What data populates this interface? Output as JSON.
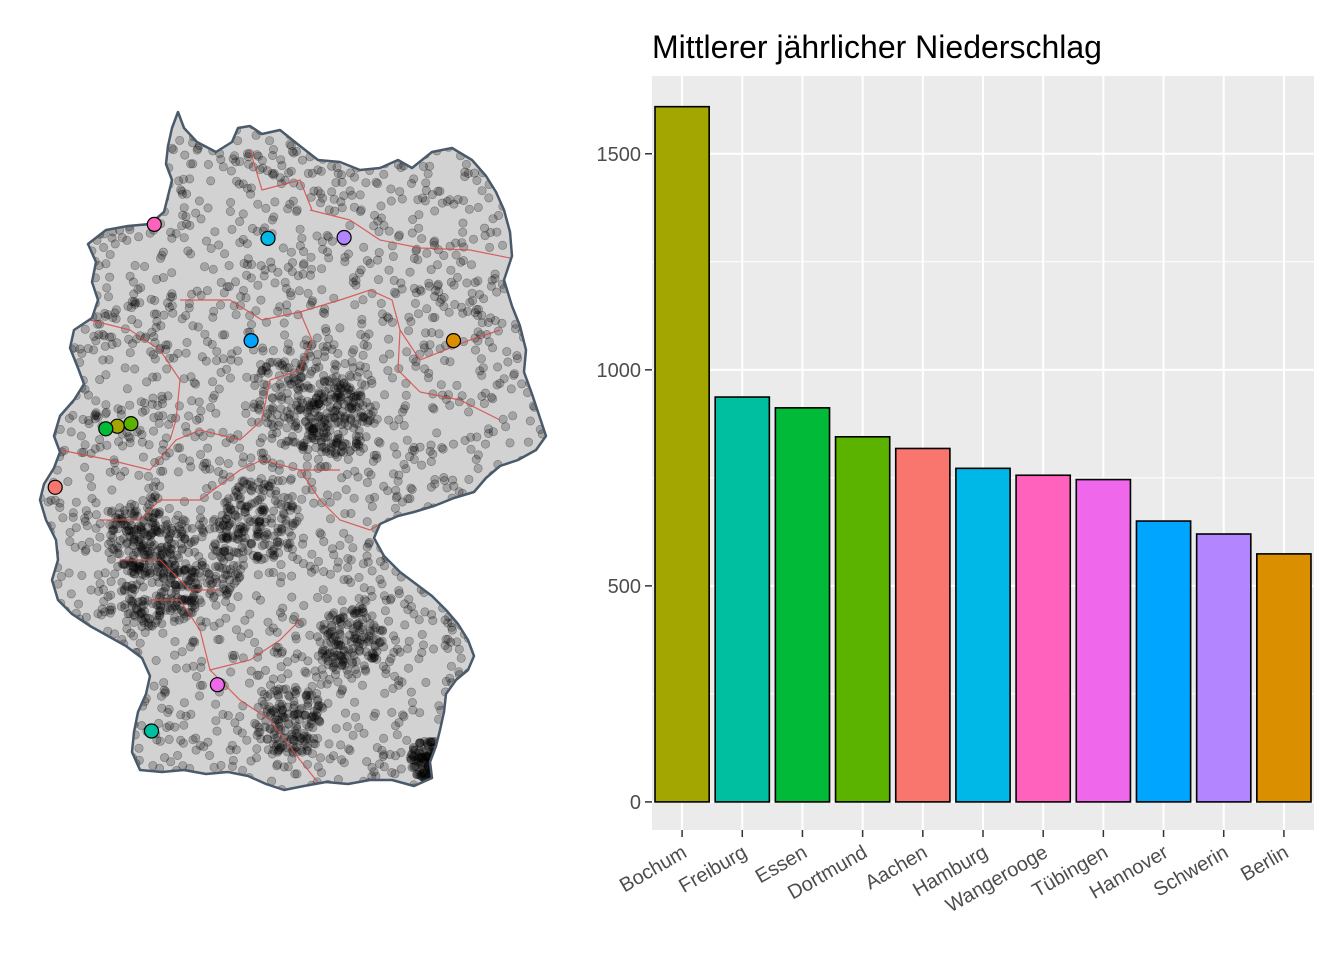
{
  "chart_data": {
    "type": "bar",
    "title": "Mittlerer jährlicher Niederschlag",
    "xlabel": "",
    "ylabel": "",
    "ylim": [
      -65,
      1680
    ],
    "yticks": [
      0,
      500,
      1000,
      1500
    ],
    "grid": true,
    "legend": "none",
    "categories": [
      "Bochum",
      "Freiburg",
      "Essen",
      "Dortmund",
      "Aachen",
      "Hamburg",
      "Wangerooge",
      "Tübingen",
      "Hannover",
      "Schwerin",
      "Berlin"
    ],
    "values": [
      1609,
      937,
      912,
      845,
      818,
      772,
      756,
      746,
      650,
      620,
      574
    ],
    "colors": [
      "#A3A500",
      "#00BFA0",
      "#00BA38",
      "#5BB300",
      "#F8766D",
      "#00B8E7",
      "#FF62BC",
      "#EF67EB",
      "#00A5FF",
      "#B385FF",
      "#D98F00"
    ]
  },
  "map": {
    "type": "point-map",
    "stations": [
      {
        "city": "Bochum",
        "color": "#A3A500",
        "lon": 7.22,
        "lat": 51.48
      },
      {
        "city": "Freiburg",
        "color": "#00BFA0",
        "lon": 7.85,
        "lat": 47.99
      },
      {
        "city": "Essen",
        "color": "#00BA38",
        "lon": 7.01,
        "lat": 51.45
      },
      {
        "city": "Dortmund",
        "color": "#5BB300",
        "lon": 7.47,
        "lat": 51.51
      },
      {
        "city": "Aachen",
        "color": "#F8766D",
        "lon": 6.08,
        "lat": 50.78
      },
      {
        "city": "Hamburg",
        "color": "#00B8E7",
        "lon": 9.99,
        "lat": 53.63
      },
      {
        "city": "Wangerooge",
        "color": "#FF62BC",
        "lon": 7.9,
        "lat": 53.79
      },
      {
        "city": "Tübingen",
        "color": "#EF67EB",
        "lon": 9.06,
        "lat": 48.52
      },
      {
        "city": "Hannover",
        "color": "#00A5FF",
        "lon": 9.68,
        "lat": 52.46
      },
      {
        "city": "Schwerin",
        "color": "#B385FF",
        "lon": 11.39,
        "lat": 53.64
      },
      {
        "city": "Berlin",
        "color": "#D98F00",
        "lon": 13.4,
        "lat": 52.46
      }
    ]
  }
}
